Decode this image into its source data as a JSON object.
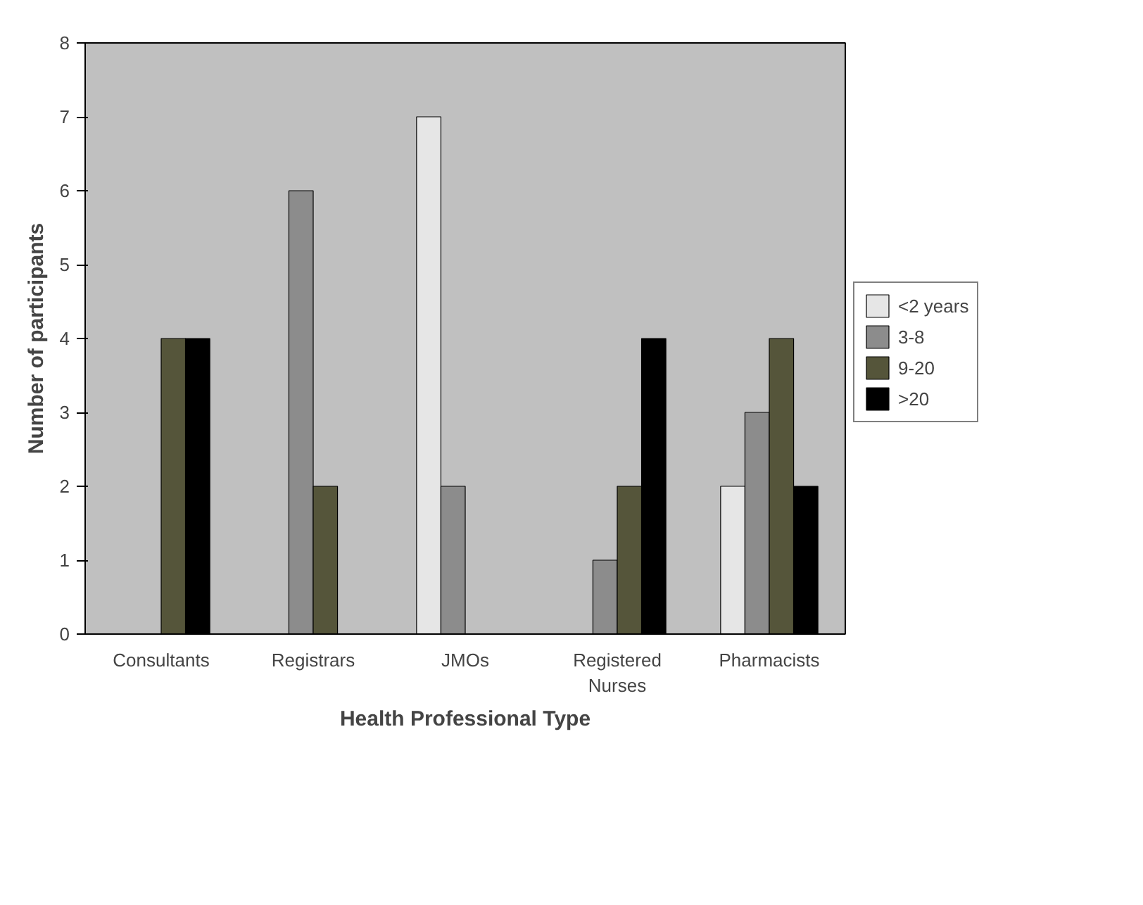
{
  "chart_data": {
    "type": "bar",
    "xlabel": "Health Professional Type",
    "ylabel": "Number of participants",
    "categories": [
      "Consultants",
      "Registrars",
      "JMOs",
      "Registered\nNurses",
      "Pharmacists"
    ],
    "series": [
      {
        "name": "<2 years",
        "color": "#e6e6e6",
        "values": [
          null,
          null,
          7,
          null,
          2
        ]
      },
      {
        "name": "3-8",
        "color": "#8c8c8c",
        "values": [
          null,
          6,
          2,
          1,
          3
        ]
      },
      {
        "name": "9-20",
        "color": "#55553a",
        "values": [
          4,
          2,
          null,
          2,
          4
        ]
      },
      {
        "name": ">20",
        "color": "#000000",
        "values": [
          4,
          null,
          null,
          4,
          2
        ]
      }
    ],
    "ylim": [
      0,
      8
    ],
    "yticks": [
      0,
      1,
      2,
      3,
      4,
      5,
      6,
      7,
      8
    ],
    "grid": false,
    "legend": "right"
  }
}
